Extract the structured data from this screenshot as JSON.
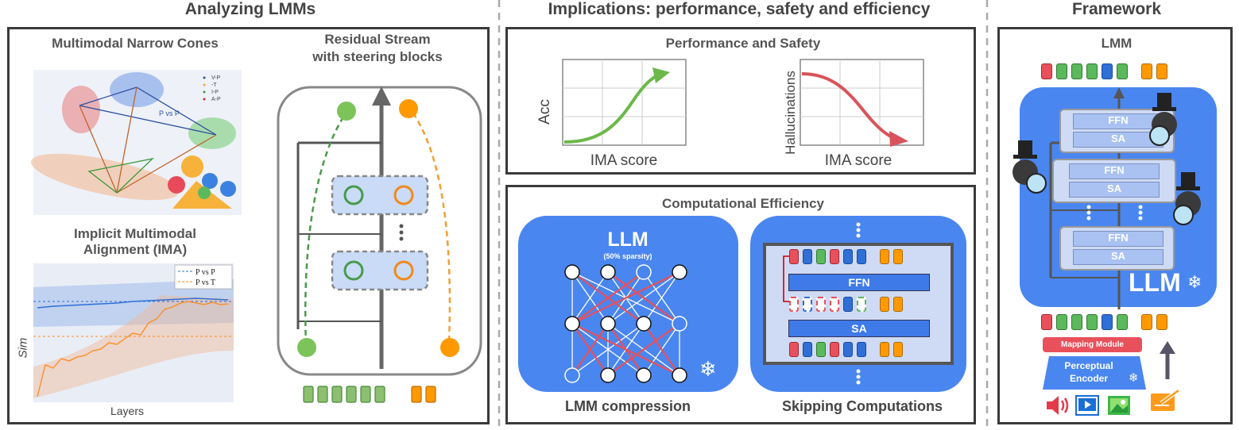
{
  "headers": {
    "analyzing": "Analyzing LMMs",
    "implications": "Implications: performance, safety and efficiency",
    "framework": "Framework"
  },
  "analyzing": {
    "cones_title": "Multimodal Narrow Cones",
    "cones_legend": [
      "V-P",
      "-T",
      "I-P",
      "A-P"
    ],
    "cones_annotation": "P vs P",
    "ima_title_1": "Implicit Multimodal",
    "ima_title_2": "Alignment (IMA)",
    "ima_legend": [
      "P vs P",
      "P vs T"
    ],
    "ima_xlabel": "Layers",
    "ima_ylabel": "Sim",
    "residual_title_1": "Residual Stream",
    "residual_title_2": "with steering blocks"
  },
  "performance": {
    "title": "Performance and Safety",
    "acc_ylabel": "Acc",
    "acc_xlabel": "IMA score",
    "hall_ylabel": "Hallucinations",
    "hall_xlabel": "IMA score"
  },
  "efficiency": {
    "title": "Computational Efficiency",
    "llm_label": "LLM",
    "sparsity": "(50% sparsity)",
    "compression_label": "LMM compression",
    "ffn": "FFN",
    "sa": "SA",
    "skipping_label": "Skipping Computations"
  },
  "framework": {
    "lmm_label": "LMM",
    "blocks": [
      {
        "ffn": "FFN",
        "sa": "SA"
      },
      {
        "ffn": "FFN",
        "sa": "SA"
      },
      {
        "ffn": "FFN",
        "sa": "SA"
      }
    ],
    "llm_label": "LLM",
    "mapping_module": "Mapping Module",
    "perceptual_1": "Perceptual",
    "perceptual_2": "Encoder"
  },
  "colors": {
    "red": "#e8505b",
    "green": "#5cb85c",
    "blue": "#2f6fd6",
    "orange": "#ff9900",
    "llm_blue": "#4a86f0",
    "acc_green": "#6cb84a",
    "hall_red": "#d9535a"
  }
}
